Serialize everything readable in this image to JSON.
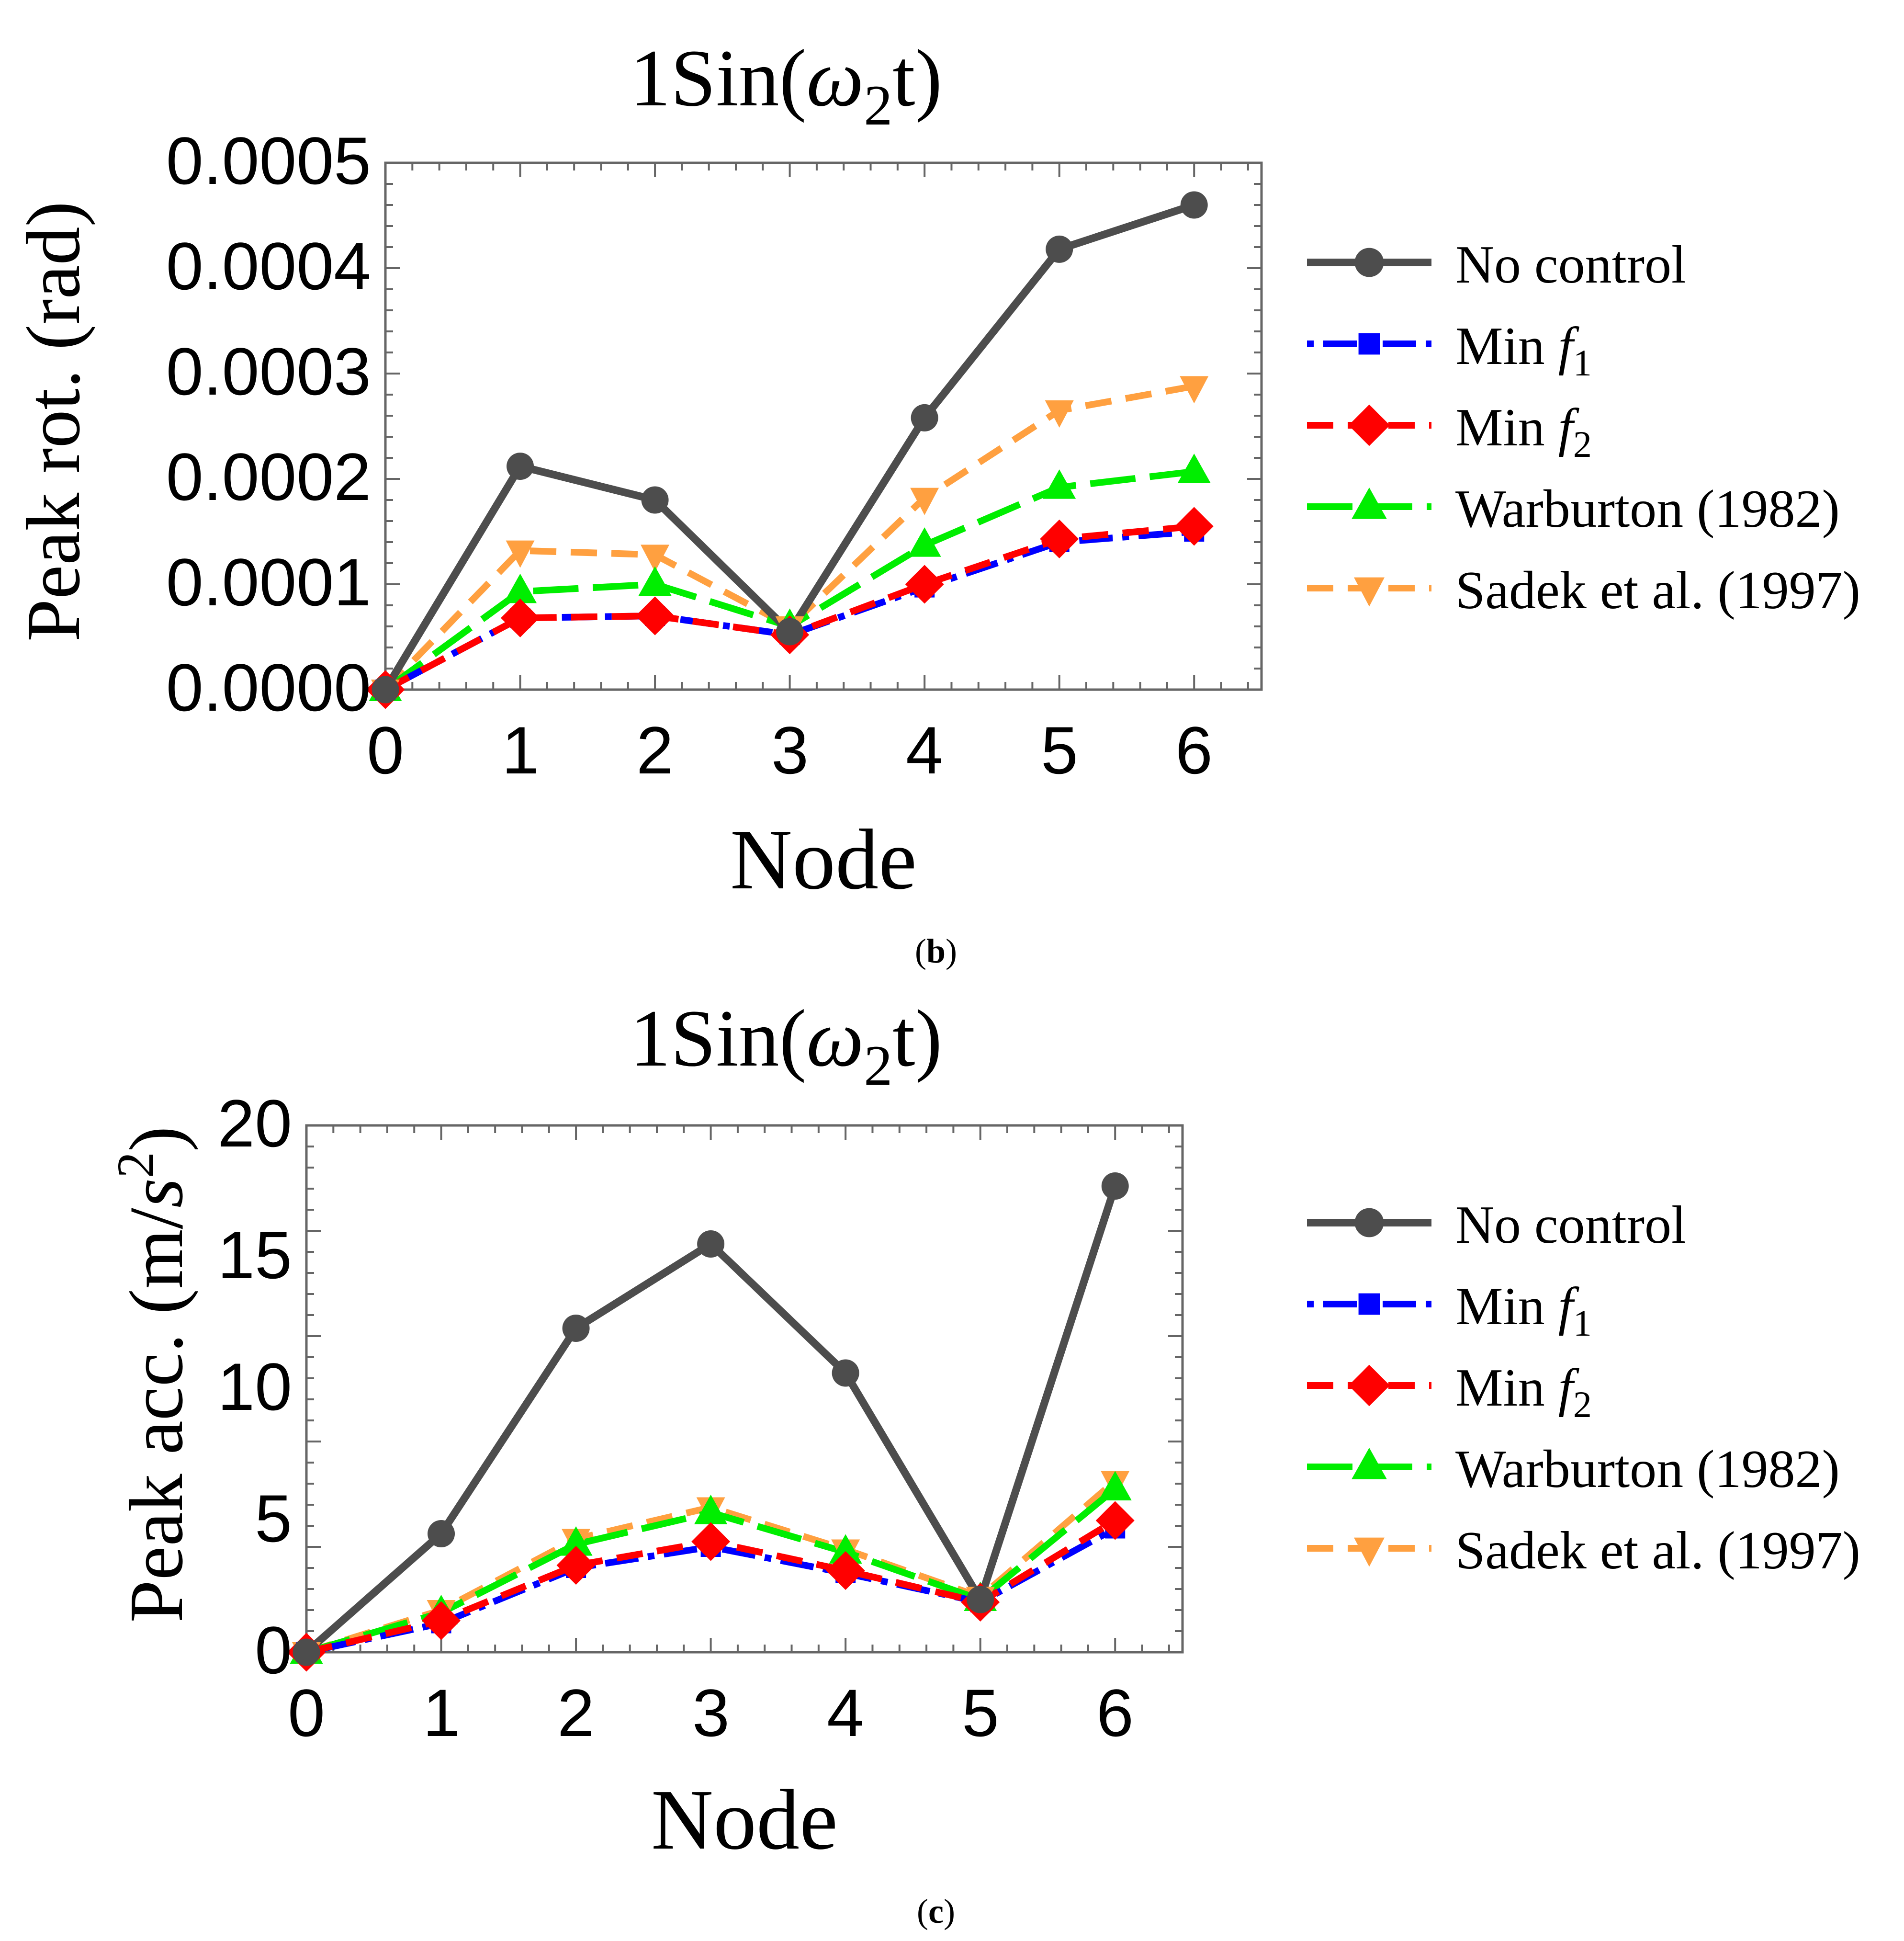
{
  "chart_data": [
    {
      "type": "line",
      "panel_label": "b",
      "title_prefix": "1Sin(",
      "title_omega": "ω",
      "title_subscript": "2",
      "title_suffix": "t)",
      "xlabel": "Node",
      "ylabel": "Peak rot. (rad)",
      "x": [
        0,
        1,
        2,
        3,
        4,
        5,
        6
      ],
      "xlim": [
        0,
        6.5
      ],
      "ylim": [
        0,
        0.0005
      ],
      "xticks": [
        "0",
        "1",
        "2",
        "3",
        "4",
        "5",
        "6"
      ],
      "yticks": [
        "0.0000",
        "0.0001",
        "0.0002",
        "0.0003",
        "0.0004",
        "0.0005"
      ],
      "legend_position": "right",
      "series": [
        {
          "name": "No control",
          "label_prefix": "No control",
          "color": "#4d4d4d",
          "dash": "solid",
          "marker": "circle",
          "values": [
            0.0,
            0.000212,
            0.00018,
            5.5e-05,
            0.000258,
            0.000418,
            0.00046
          ]
        },
        {
          "name": "Min f1",
          "label_prefix": "Min ",
          "label_italic": "f",
          "label_sub": "1",
          "color": "#0000ff",
          "dash": "dotdash",
          "marker": "square",
          "values": [
            0.0,
            6.8e-05,
            7e-05,
            5.2e-05,
            9.7e-05,
            0.00014,
            0.00015
          ]
        },
        {
          "name": "Min f2",
          "label_prefix": "Min ",
          "label_italic": "f",
          "label_sub": "2",
          "color": "#ff0000",
          "dash": "dashed",
          "marker": "diamond",
          "values": [
            0.0,
            6.8e-05,
            7e-05,
            5.2e-05,
            0.0001,
            0.000143,
            0.000155
          ]
        },
        {
          "name": "Warburton (1982)",
          "label_prefix": "Warburton (1982)",
          "color": "#00ee00",
          "dash": "longdash",
          "marker": "triangle-up",
          "values": [
            0.0,
            9.3e-05,
            0.0001,
            6e-05,
            0.000137,
            0.000192,
            0.000207
          ]
        },
        {
          "name": "Sadek et al. (1997)",
          "label_prefix": "Sadek et al. (1997)",
          "color": "#ffa040",
          "dash": "dashed",
          "marker": "triangle-down",
          "values": [
            0.0,
            0.000132,
            0.000128,
            6e-05,
            0.000182,
            0.000265,
            0.000288
          ]
        }
      ]
    },
    {
      "type": "line",
      "panel_label": "c",
      "title_prefix": "1Sin(",
      "title_omega": "ω",
      "title_subscript": "2",
      "title_suffix": "t)",
      "xlabel": "Node",
      "ylabel_prefix": "Peak acc. (m/",
      "ylabel_var": "s",
      "ylabel_sup": "2",
      "ylabel_suffix": ")",
      "x": [
        0,
        1,
        2,
        3,
        4,
        5,
        6
      ],
      "xlim": [
        0,
        6.5
      ],
      "ylim": [
        0,
        20
      ],
      "xticks": [
        "0",
        "1",
        "2",
        "3",
        "4",
        "5",
        "6"
      ],
      "yticks": [
        "0",
        "5",
        "10",
        "15",
        "20"
      ],
      "legend_position": "right",
      "series": [
        {
          "name": "No control",
          "label_prefix": "No control",
          "color": "#4d4d4d",
          "dash": "solid",
          "marker": "circle",
          "values": [
            0.0,
            4.5,
            12.3,
            15.5,
            10.6,
            2.0,
            17.7
          ]
        },
        {
          "name": "Min f1",
          "label_prefix": "Min ",
          "label_italic": "f",
          "label_sub": "1",
          "color": "#0000ff",
          "dash": "dotdash",
          "marker": "square",
          "values": [
            0.0,
            1.1,
            3.2,
            4.0,
            3.0,
            1.9,
            4.7
          ]
        },
        {
          "name": "Min f2",
          "label_prefix": "Min ",
          "label_italic": "f",
          "label_sub": "2",
          "color": "#ff0000",
          "dash": "dashed",
          "marker": "diamond",
          "values": [
            0.0,
            1.2,
            3.3,
            4.2,
            3.1,
            1.9,
            5.0
          ]
        },
        {
          "name": "Warburton (1982)",
          "label_prefix": "Warburton (1982)",
          "color": "#00ee00",
          "dash": "longdash",
          "marker": "triangle-up",
          "values": [
            0.0,
            1.5,
            4.1,
            5.3,
            3.8,
            2.0,
            6.2
          ]
        },
        {
          "name": "Sadek et al. (1997)",
          "label_prefix": "Sadek et al. (1997)",
          "color": "#ffa040",
          "dash": "dashed",
          "marker": "triangle-down",
          "values": [
            0.0,
            1.6,
            4.3,
            5.5,
            3.9,
            2.1,
            6.5
          ]
        }
      ]
    }
  ]
}
